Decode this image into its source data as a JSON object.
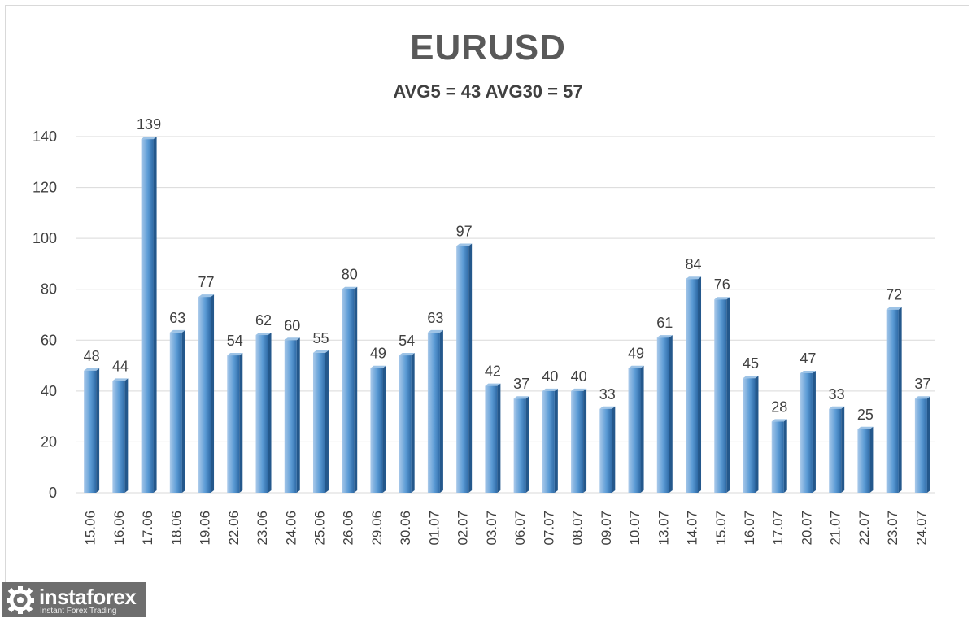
{
  "chart_data": {
    "type": "bar",
    "title": "EURUSD",
    "subtitle": "AVG5 = 43 AVG30 = 57",
    "xlabel": "",
    "ylabel": "",
    "ylim": [
      0,
      140
    ],
    "yticks": [
      0,
      20,
      40,
      60,
      80,
      100,
      120,
      140
    ],
    "grid": true,
    "categories": [
      "15.06",
      "16.06",
      "17.06",
      "18.06",
      "19.06",
      "22.06",
      "23.06",
      "24.06",
      "25.06",
      "26.06",
      "29.06",
      "30.06",
      "01.07",
      "02.07",
      "03.07",
      "06.07",
      "07.07",
      "08.07",
      "09.07",
      "10.07",
      "13.07",
      "14.07",
      "15.07",
      "16.07",
      "17.07",
      "20.07",
      "21.07",
      "22.07",
      "23.07",
      "24.07"
    ],
    "values": [
      48,
      44,
      139,
      63,
      77,
      54,
      62,
      60,
      55,
      80,
      49,
      54,
      63,
      97,
      42,
      37,
      40,
      40,
      33,
      49,
      61,
      84,
      76,
      45,
      28,
      47,
      33,
      25,
      72,
      37
    ],
    "colors": {
      "bar_light": "#a9c9ea",
      "bar_mid": "#5b9bd5",
      "bar_dark": "#2e6aa6",
      "grid": "#d9d9d9",
      "text": "#404040"
    }
  },
  "logo": {
    "name": "instaforex",
    "tagline": "Instant Forex Trading",
    "icon": "gear-logo-icon"
  }
}
